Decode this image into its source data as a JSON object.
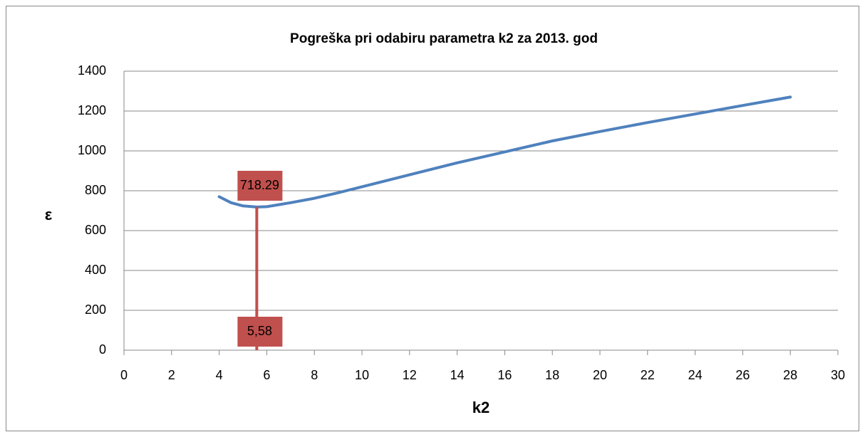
{
  "chart_data": {
    "type": "line",
    "title": "Pogreška pri odabiru parametra k2 za 2013. god",
    "xlabel": "k2",
    "ylabel": "ε",
    "series": [
      {
        "name": "ε",
        "color": "#4f81bd",
        "x": [
          4,
          4.5,
          5,
          5.58,
          6,
          7,
          8,
          9,
          10,
          12,
          14,
          16,
          18,
          20,
          22,
          24,
          26,
          28
        ],
        "values": [
          770,
          740,
          724,
          718.29,
          720,
          740,
          762,
          790,
          820,
          880,
          940,
          995,
          1050,
          1097,
          1142,
          1185,
          1228,
          1270
        ]
      }
    ],
    "marker": {
      "x": 5.58,
      "y": 718.29,
      "x_label": "5,58",
      "y_label": "718.29",
      "color": "#c0504d"
    },
    "xlim": [
      0,
      30
    ],
    "xticks": [
      0,
      2,
      4,
      6,
      8,
      10,
      12,
      14,
      16,
      18,
      20,
      22,
      24,
      26,
      28,
      30
    ],
    "ylim": [
      0,
      1400
    ],
    "yticks": [
      0,
      200,
      400,
      600,
      800,
      1000,
      1200,
      1400
    ],
    "grid": true
  }
}
